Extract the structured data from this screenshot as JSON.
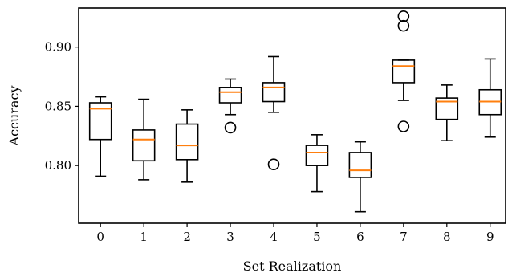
{
  "chart_data": {
    "type": "box",
    "xlabel": "Set Realization",
    "ylabel": "Accuracy",
    "ylim": [
      0.7513,
      0.933
    ],
    "ytick_values": [
      0.8,
      0.85,
      0.9
    ],
    "ytick_labels": [
      "0.80",
      "0.85",
      "0.90"
    ],
    "categories": [
      "0",
      "1",
      "2",
      "3",
      "4",
      "5",
      "6",
      "7",
      "8",
      "9"
    ],
    "boxes": [
      {
        "whisker_low": 0.791,
        "q1": 0.822,
        "median": 0.848,
        "q3": 0.853,
        "whisker_high": 0.858,
        "outliers": []
      },
      {
        "whisker_low": 0.788,
        "q1": 0.804,
        "median": 0.822,
        "q3": 0.83,
        "whisker_high": 0.856,
        "outliers": []
      },
      {
        "whisker_low": 0.786,
        "q1": 0.805,
        "median": 0.817,
        "q3": 0.835,
        "whisker_high": 0.847,
        "outliers": []
      },
      {
        "whisker_low": 0.843,
        "q1": 0.853,
        "median": 0.862,
        "q3": 0.866,
        "whisker_high": 0.873,
        "outliers": [
          0.832
        ]
      },
      {
        "whisker_low": 0.845,
        "q1": 0.854,
        "median": 0.866,
        "q3": 0.87,
        "whisker_high": 0.892,
        "outliers": [
          0.801
        ]
      },
      {
        "whisker_low": 0.778,
        "q1": 0.8,
        "median": 0.811,
        "q3": 0.817,
        "whisker_high": 0.826,
        "outliers": []
      },
      {
        "whisker_low": 0.761,
        "q1": 0.79,
        "median": 0.796,
        "q3": 0.811,
        "whisker_high": 0.82,
        "outliers": []
      },
      {
        "whisker_low": 0.855,
        "q1": 0.87,
        "median": 0.884,
        "q3": 0.889,
        "whisker_high": 0.889,
        "outliers": [
          0.833,
          0.918,
          0.926
        ]
      },
      {
        "whisker_low": 0.821,
        "q1": 0.839,
        "median": 0.854,
        "q3": 0.857,
        "whisker_high": 0.868,
        "outliers": []
      },
      {
        "whisker_low": 0.824,
        "q1": 0.843,
        "median": 0.854,
        "q3": 0.864,
        "whisker_high": 0.89,
        "outliers": []
      }
    ],
    "colors": {
      "box": "#000000",
      "median": "#ff7f0e",
      "background": "#ffffff"
    },
    "grid": false,
    "legend": "none"
  }
}
